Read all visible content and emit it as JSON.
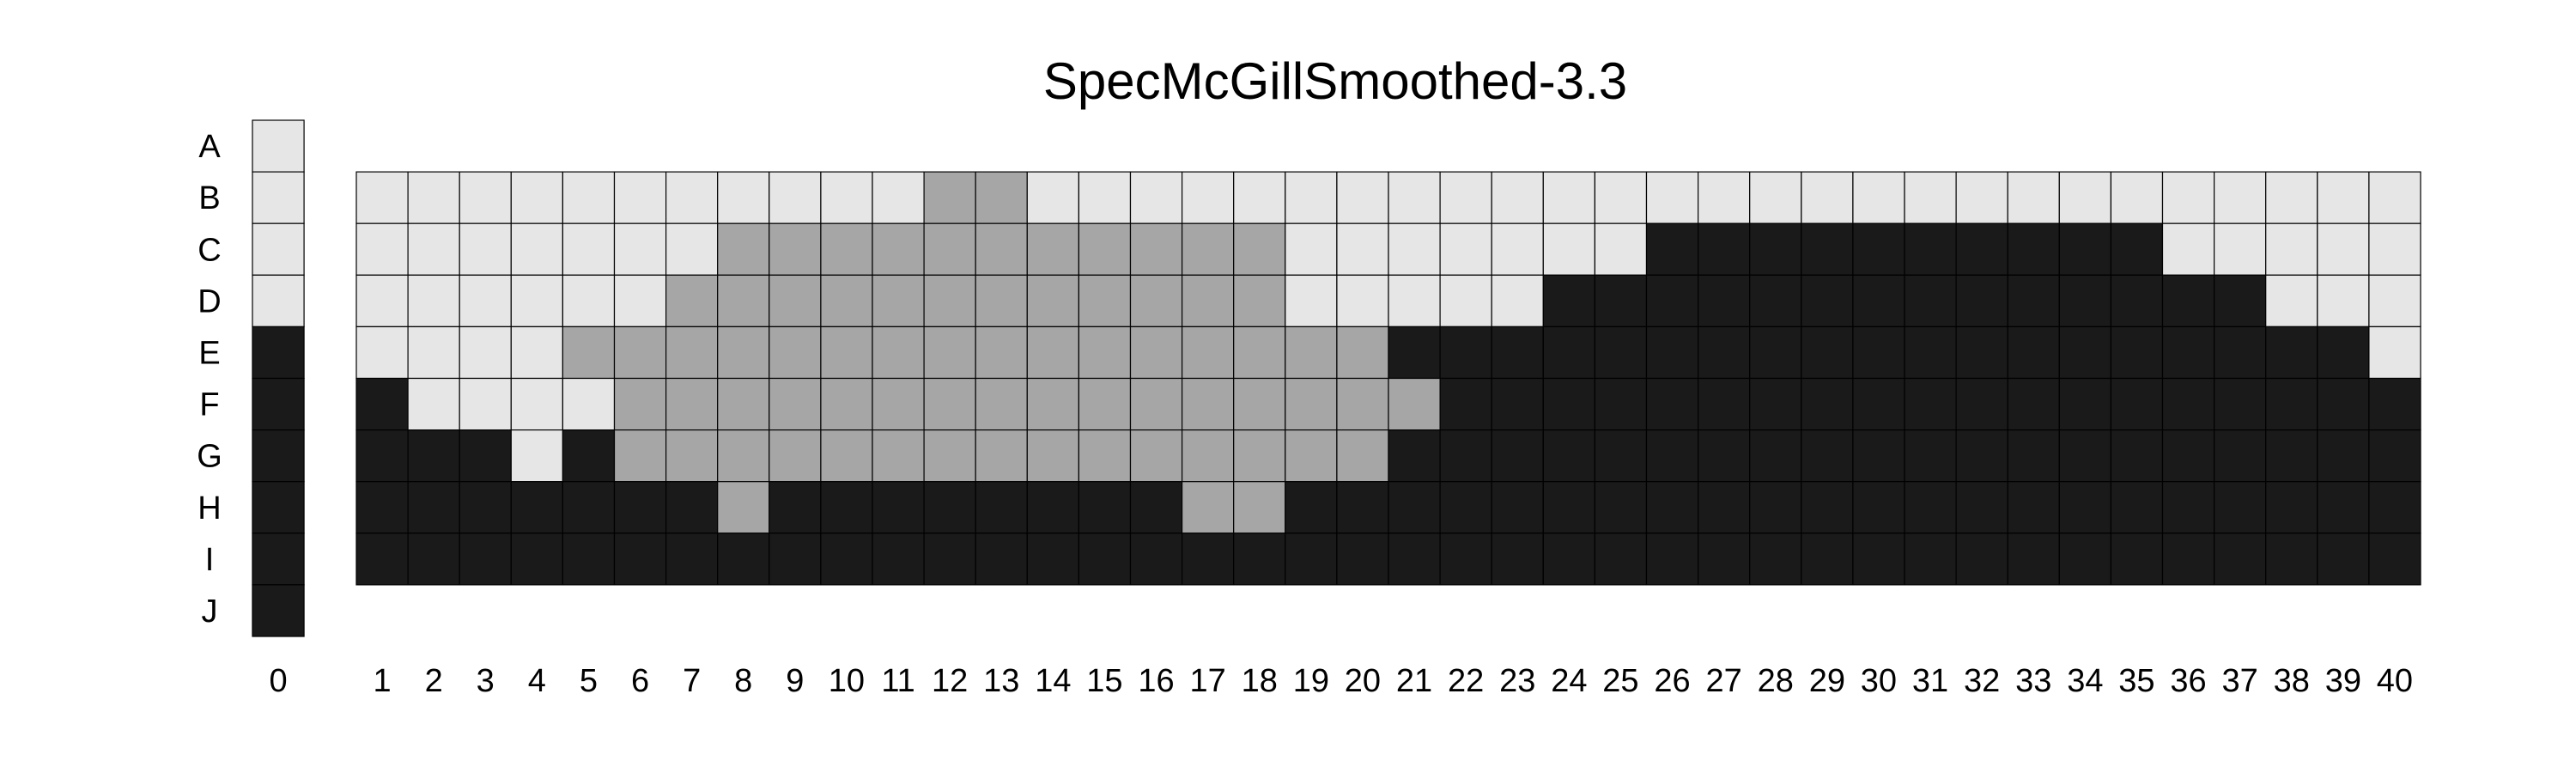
{
  "chart_data": {
    "type": "heatmap",
    "title": "SpecMcGillSmoothed-3.3",
    "colors": {
      "light": "#e6e6e6",
      "medium": "#a6a6a6",
      "dark": "#1a1a1a"
    },
    "row_labels": [
      "A",
      "B",
      "C",
      "D",
      "E",
      "F",
      "G",
      "H",
      "I",
      "J"
    ],
    "reference_column": {
      "label": "0",
      "cells": [
        "light",
        "light",
        "light",
        "light",
        "dark",
        "dark",
        "dark",
        "dark",
        "dark",
        "dark"
      ]
    },
    "column_labels": [
      "1",
      "2",
      "3",
      "4",
      "5",
      "6",
      "7",
      "8",
      "9",
      "10",
      "11",
      "12",
      "13",
      "14",
      "15",
      "16",
      "17",
      "18",
      "19",
      "20",
      "21",
      "22",
      "23",
      "24",
      "25",
      "26",
      "27",
      "28",
      "29",
      "30",
      "31",
      "32",
      "33",
      "34",
      "35",
      "36",
      "37",
      "38",
      "39",
      "40"
    ],
    "grid_rows": [
      "B",
      "C",
      "D",
      "E",
      "F",
      "G",
      "H",
      "I"
    ],
    "legend": {
      "L": "light",
      "M": "medium",
      "D": "dark"
    },
    "grid": [
      "LLLLLLLLLLLMMLLLLLLLLLLLLLLLLLLLLLLLLLLL",
      "LLLLLLLMMMMMMMMMMMLLLLLLLDDDDDDDDDDLLLLL",
      "LLLLLLMMMMMMMMMMMMLLLLLDDDDDDDDDDDDDDLLL",
      "LLLLMMMMMMMMMMMMMMMMDDDDDDDDDDDDDDDDDDDL",
      "DLLLLMMMMMMMMMMMMMMMMDDDDDDDDDDDDDDDDDDD",
      "DDDLDMMMMMMMMMMMMMMMDDDDDDDDDDDDDDDDDDDD",
      "DDDDDDDMDDDDDDDDMMDDDDDDDDDDDDDDDDDDDDDD",
      "DDDDDDDDDDDDDDDDDDDDDDDDDDDDDDDDDDDDDDDD"
    ]
  }
}
